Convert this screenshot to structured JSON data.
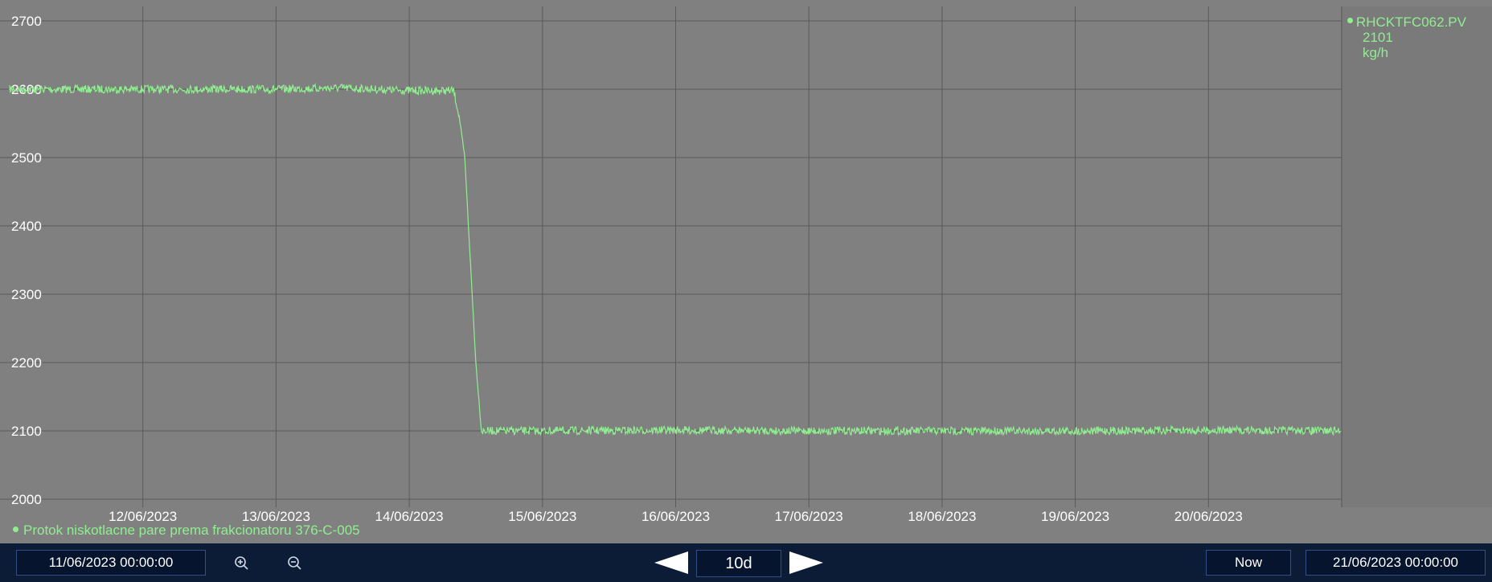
{
  "colors": {
    "plot_background": "#808080",
    "series": "#90ee90",
    "grid": "#5a5a5a",
    "toolbar": "#0c1b36"
  },
  "legend_right": {
    "tag": "RHCKTFC062.PV",
    "value": "2101",
    "unit": "kg/h"
  },
  "legend_bottom": {
    "label": "Protok niskotlacne pare prema frakcionatoru 376-C-005"
  },
  "toolbar": {
    "start_time": "11/06/2023 00:00:00",
    "zoom_in_icon": "zoom-in-icon",
    "zoom_out_icon": "zoom-out-icon",
    "range": "10d",
    "prev_icon": "arrow-left-icon",
    "next_icon": "arrow-right-icon",
    "now_label": "Now",
    "end_time": "21/06/2023 00:00:00"
  },
  "chart_data": {
    "type": "line",
    "title": "",
    "xlabel": "",
    "ylabel": "",
    "xlim": [
      "11/06/2023 00:00:00",
      "21/06/2023 00:00:00"
    ],
    "ylim": [
      2000,
      2700
    ],
    "yticks": [
      2000,
      2100,
      2200,
      2300,
      2400,
      2500,
      2600,
      2700
    ],
    "xticks": [
      "12/06/2023",
      "13/06/2023",
      "14/06/2023",
      "15/06/2023",
      "16/06/2023",
      "17/06/2023",
      "18/06/2023",
      "19/06/2023",
      "20/06/2023"
    ],
    "grid": true,
    "legend": "top-right",
    "series": [
      {
        "name": "RHCKTFC062.PV",
        "x": [
          "11/06/2023 00:00",
          "12/06/2023 00:00",
          "13/06/2023 00:00",
          "13/06/2023 12:00",
          "14/06/2023 00:00",
          "14/06/2023 08:00",
          "14/06/2023 09:00",
          "14/06/2023 10:00",
          "14/06/2023 11:00",
          "14/06/2023 12:00",
          "14/06/2023 13:00",
          "15/06/2023 00:00",
          "16/06/2023 00:00",
          "17/06/2023 00:00",
          "18/06/2023 00:00",
          "19/06/2023 00:00",
          "20/06/2023 00:00",
          "21/06/2023 00:00"
        ],
        "values": [
          2600,
          2600,
          2600,
          2602,
          2598,
          2598,
          2560,
          2500,
          2350,
          2200,
          2100,
          2100,
          2101,
          2100,
          2100,
          2100,
          2101,
          2100
        ]
      }
    ]
  }
}
